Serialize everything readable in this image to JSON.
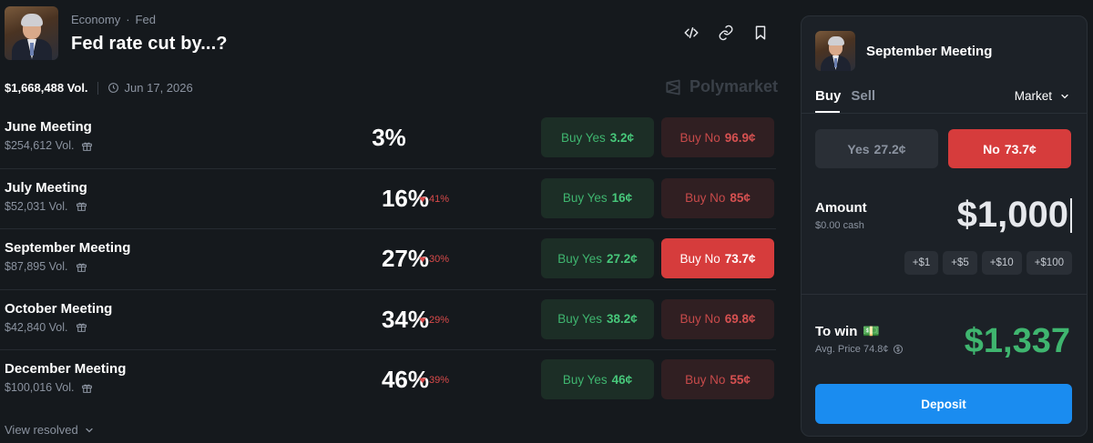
{
  "market": {
    "category": "Economy",
    "subcategory": "Fed",
    "title": "Fed rate cut by...?",
    "volume": "$1,668,488 Vol.",
    "end_date": "Jun 17, 2026",
    "brand": "Polymarket",
    "rows": [
      {
        "name": "June Meeting",
        "volume": "$254,612 Vol.",
        "pct": "3%",
        "change": "",
        "yes_label": "Buy Yes",
        "yes_price": "3.2¢",
        "no_label": "Buy No",
        "no_price": "96.9¢",
        "selected": false
      },
      {
        "name": "July Meeting",
        "volume": "$52,031 Vol.",
        "pct": "16%",
        "change": "41%",
        "yes_label": "Buy Yes",
        "yes_price": "16¢",
        "no_label": "Buy No",
        "no_price": "85¢",
        "selected": false
      },
      {
        "name": "September Meeting",
        "volume": "$87,895 Vol.",
        "pct": "27%",
        "change": "30%",
        "yes_label": "Buy Yes",
        "yes_price": "27.2¢",
        "no_label": "Buy No",
        "no_price": "73.7¢",
        "selected": true
      },
      {
        "name": "October Meeting",
        "volume": "$42,840 Vol.",
        "pct": "34%",
        "change": "29%",
        "yes_label": "Buy Yes",
        "yes_price": "38.2¢",
        "no_label": "Buy No",
        "no_price": "69.8¢",
        "selected": false
      },
      {
        "name": "December Meeting",
        "volume": "$100,016 Vol.",
        "pct": "46%",
        "change": "39%",
        "yes_label": "Buy Yes",
        "yes_price": "46¢",
        "no_label": "Buy No",
        "no_price": "55¢",
        "selected": false
      }
    ],
    "view_resolved": "View resolved"
  },
  "trade": {
    "title": "September Meeting",
    "tabs": [
      "Buy",
      "Sell"
    ],
    "active_tab": "Buy",
    "order_type": "Market",
    "yes_label": "Yes",
    "yes_price": "27.2¢",
    "no_label": "No",
    "no_price": "73.7¢",
    "amount_label": "Amount",
    "cash": "$0.00 cash",
    "amount_value": "$1,000",
    "quick_amounts": [
      "+$1",
      "+$5",
      "+$10",
      "+$100"
    ],
    "to_win_label": "To win",
    "to_win_emoji": "💵",
    "avg_price": "Avg. Price 74.8¢",
    "to_win_value": "$1,337",
    "deposit_label": "Deposit"
  },
  "colors": {
    "background": "#15191d",
    "panel": "#1c2127",
    "green": "#3fb56f",
    "red": "#d63c3c",
    "blue": "#1a8cf0"
  }
}
